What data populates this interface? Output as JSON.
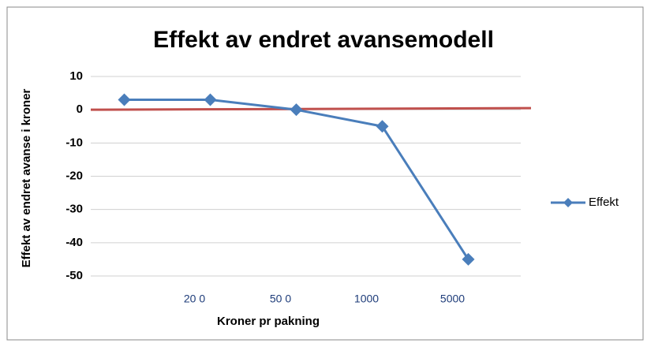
{
  "chart_data": {
    "type": "line",
    "title": "Effekt av endret avansemodell",
    "x_label": "Kroner pr pakning",
    "y_label": "Effekt av endret avanse i kroner",
    "categories": [
      null,
      "20 0",
      "50 0",
      "1000",
      "5000"
    ],
    "series": [
      {
        "name": "Effekt",
        "color": "#4a7ebb",
        "values": [
          3,
          3,
          0,
          -5,
          -45
        ]
      }
    ],
    "reference_line": {
      "value": 0,
      "color": "#c0504d"
    },
    "ylim": [
      -50,
      10
    ],
    "yticks": [
      -50,
      -40,
      -30,
      -20,
      -10,
      0,
      10
    ],
    "grid": true,
    "legend": "right"
  }
}
